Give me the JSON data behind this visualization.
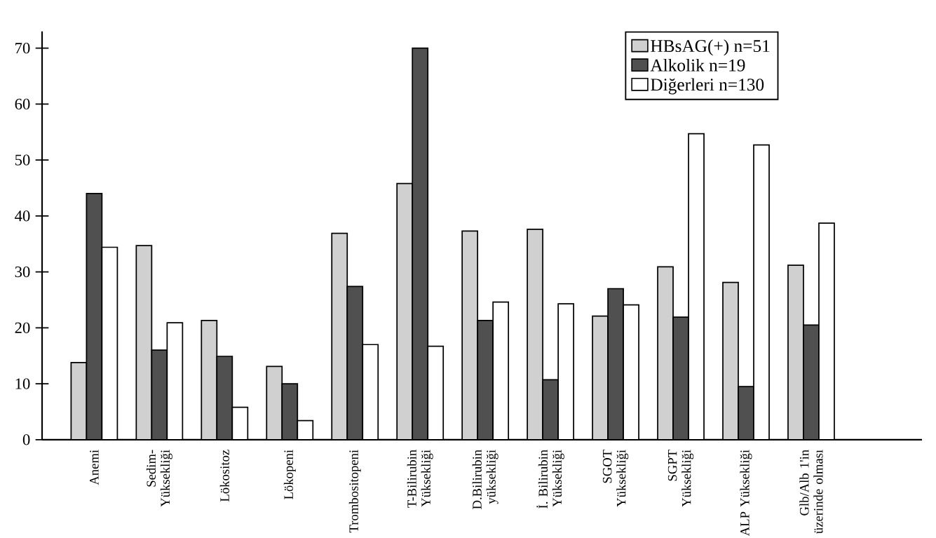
{
  "chart_data": {
    "type": "bar",
    "categories": [
      "Anemi",
      "Sedim- Yüksekliği",
      "Lökositoz",
      "Lökopeni",
      "Trombositopeni",
      "T-Bilirubin Yüksekliği",
      "D.Bilirubin yüksekliği",
      "İ. Bilirubin Yüksekliği",
      "SGOT Yüksekliği",
      "SGPT Yüksekliği",
      "ALP Yüksekliği",
      "Glb/Alb 1'in üzerinde olması"
    ],
    "series": [
      {
        "name": "HBsAG(+) n=51",
        "color": "#d0d0d0",
        "values": [
          13.8,
          34.7,
          21.3,
          13.1,
          36.9,
          45.8,
          37.3,
          37.6,
          22.1,
          30.9,
          28.1,
          31.2
        ]
      },
      {
        "name": "Alkolik n=19",
        "color": "#505050",
        "values": [
          44,
          16,
          14.9,
          10,
          27.4,
          70,
          21.3,
          10.7,
          27,
          21.9,
          9.5,
          20.5
        ]
      },
      {
        "name": "Diğerleri n=130",
        "color": "#ffffff",
        "values": [
          34.4,
          20.9,
          5.8,
          3.4,
          17,
          16.7,
          24.6,
          24.3,
          24.1,
          54.7,
          52.7,
          38.7
        ]
      }
    ],
    "ylim": [
      0,
      73
    ],
    "yticks": [
      0,
      10,
      20,
      30,
      40,
      50,
      60,
      70
    ],
    "legend": "top right"
  }
}
